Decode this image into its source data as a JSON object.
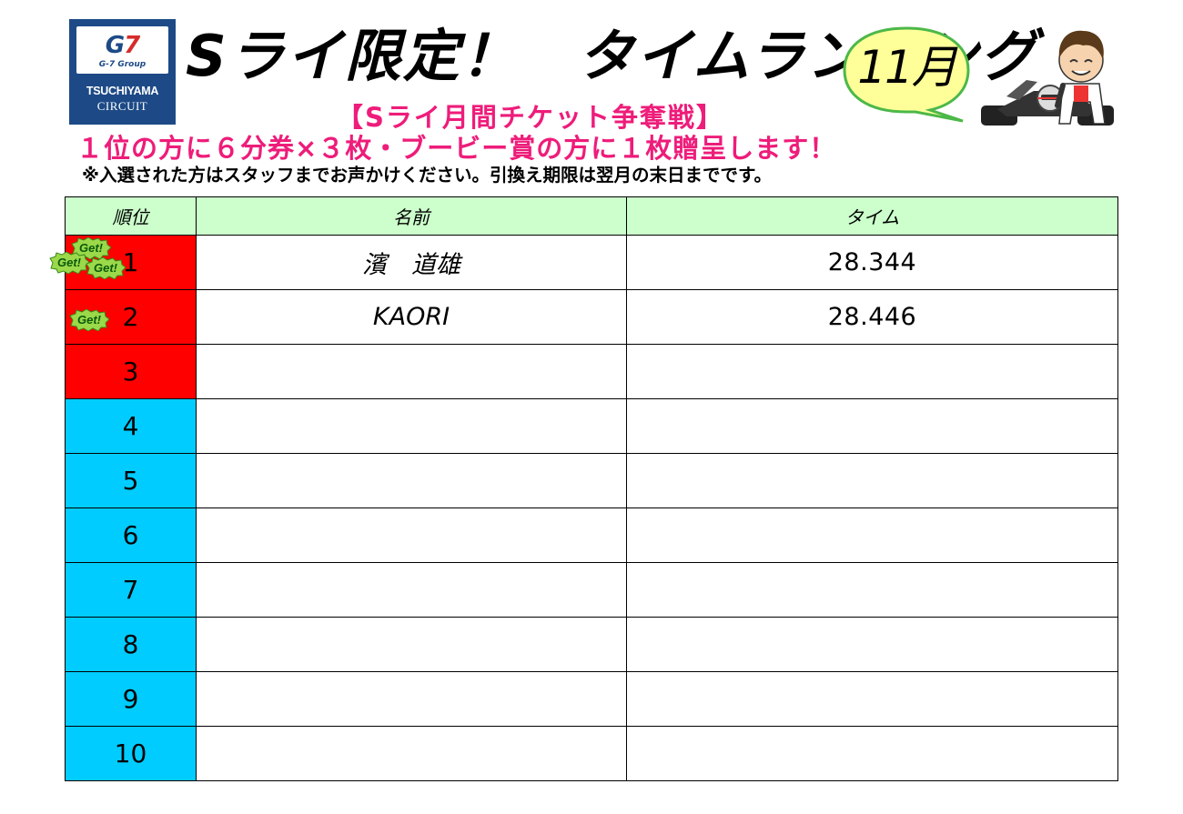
{
  "logo": {
    "brand": "G7",
    "group": "G-7 Group",
    "name": "TSUCHIYAMA",
    "sub": "CIRCUIT"
  },
  "header": {
    "title": "Sライ限定！　タイムランキング",
    "month": "11月",
    "subtitle": "【Sライ月間チケット争奪戦】",
    "prize": "１位の方に６分券×３枚・ブービー賞の方に１枚贈呈します！",
    "note": "※入選された方はスタッフまでお声かけください。引換え期限は翌月の末日までです。"
  },
  "table": {
    "headers": [
      "順位",
      "名前",
      "タイム"
    ],
    "rows": [
      {
        "rank": "1",
        "name": "濱　道雄",
        "time": "28.344"
      },
      {
        "rank": "2",
        "name": "KAORI",
        "time": "28.446"
      },
      {
        "rank": "3",
        "name": "",
        "time": ""
      },
      {
        "rank": "4",
        "name": "",
        "time": ""
      },
      {
        "rank": "5",
        "name": "",
        "time": ""
      },
      {
        "rank": "6",
        "name": "",
        "time": ""
      },
      {
        "rank": "7",
        "name": "",
        "time": ""
      },
      {
        "rank": "8",
        "name": "",
        "time": ""
      },
      {
        "rank": "9",
        "name": "",
        "time": ""
      },
      {
        "rank": "10",
        "name": "",
        "time": ""
      }
    ]
  },
  "badges": {
    "label": "Get!"
  },
  "colors": {
    "accent_pink": "#ee1c7a",
    "top_rank_red": "#ff0000",
    "other_rank_blue": "#00ccff",
    "header_green": "#ccffcc",
    "bubble_yellow": "#ffff99",
    "bubble_border": "#4cb848",
    "logo_navy": "#1d4a86"
  },
  "icons": {
    "logo": "tsuchiyama-circuit-logo",
    "mascot": "kart-driver-mascot-icon",
    "badge": "get-badge-icon"
  }
}
